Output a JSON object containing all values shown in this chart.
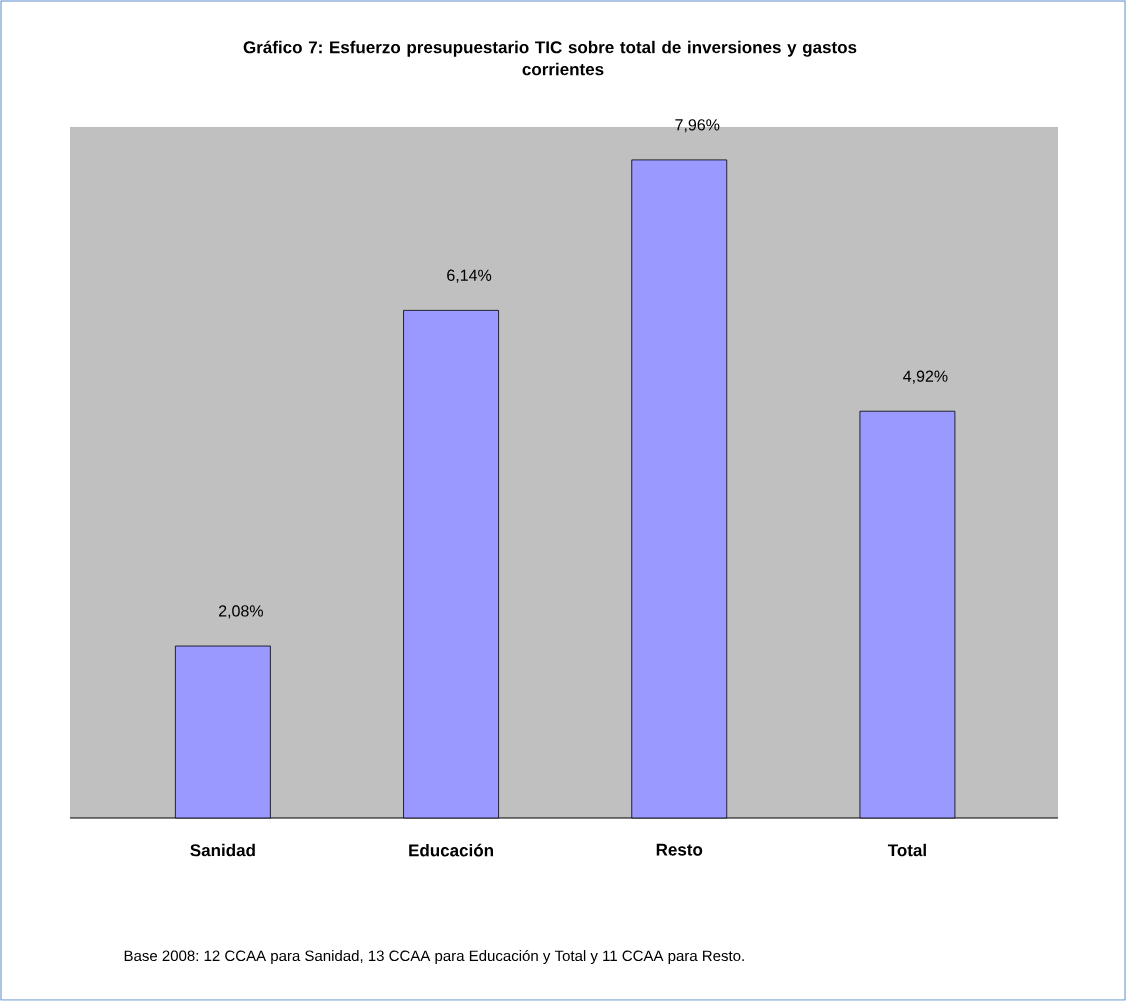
{
  "chart_data": {
    "type": "bar",
    "title": "Gráfico 7: Esfuerzo presupuestario TIC sobre total de inversiones y gastos corrientes",
    "categories": [
      "Sanidad",
      "Educación",
      "Resto",
      "Total"
    ],
    "values": [
      2.08,
      6.14,
      7.96,
      4.92
    ],
    "value_labels": [
      "2,08%",
      "6,14%",
      "7,96%",
      "4,92%"
    ],
    "color": "#9999ff",
    "annotations": [
      "Base 2008: 12 CCAA para Sanidad, 13 CCAA para Educación y Total y 11 CCAA para Resto."
    ]
  }
}
